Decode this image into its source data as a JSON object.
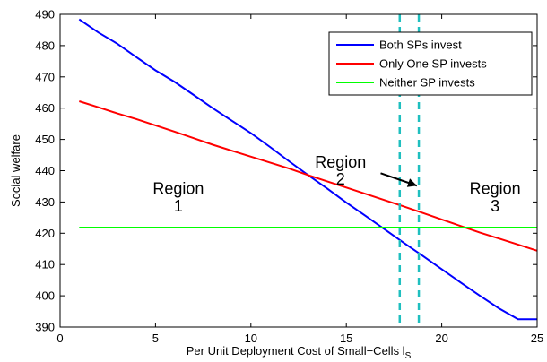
{
  "chart_data": {
    "type": "line",
    "xlabel": "Per Unit Deployment Cost of Small−Cells l",
    "xlabel_sub": "S",
    "ylabel": "Social welfare",
    "xlim": [
      0,
      25
    ],
    "ylim": [
      390,
      490
    ],
    "xticks": [
      0,
      5,
      10,
      15,
      20,
      25
    ],
    "yticks": [
      390,
      400,
      410,
      420,
      430,
      440,
      450,
      460,
      470,
      480,
      490
    ],
    "grid": false,
    "legend_position": "top-right",
    "series": [
      {
        "name": "Both SPs invest",
        "color": "#0000ff",
        "x": [
          1,
          2,
          3,
          4,
          5,
          6,
          7,
          8,
          9,
          10,
          11,
          12,
          13,
          14,
          15,
          16,
          17,
          18,
          19,
          20,
          21,
          22,
          23,
          24,
          25
        ],
        "y": [
          488.4,
          484.2,
          480.6,
          476.3,
          472.1,
          468.4,
          464.2,
          460.0,
          456.0,
          452.0,
          447.6,
          443.0,
          438.6,
          434.3,
          429.8,
          425.6,
          421.3,
          417.0,
          412.8,
          408.5,
          404.2,
          400.0,
          396.0,
          392.5,
          392.5
        ]
      },
      {
        "name": "Only One SP invests",
        "color": "#ff0000",
        "x": [
          1,
          2,
          3,
          4,
          5,
          6,
          7,
          8,
          9,
          10,
          11,
          12,
          13,
          14,
          15,
          16,
          17,
          18,
          19,
          20,
          21,
          22,
          23,
          24,
          25
        ],
        "y": [
          462.2,
          460.3,
          458.3,
          456.5,
          454.5,
          452.5,
          450.4,
          448.3,
          446.4,
          444.5,
          442.6,
          440.7,
          438.6,
          436.6,
          434.6,
          432.6,
          430.6,
          428.6,
          426.5,
          424.4,
          422.3,
          420.2,
          418.3,
          416.4,
          414.4
        ]
      },
      {
        "name": "Neither SP invests",
        "color": "#00ff00",
        "x": [
          1,
          25
        ],
        "y": [
          421.8,
          421.8
        ]
      }
    ],
    "vertical_lines": [
      {
        "x": 17.8,
        "color": "#1fbfbf"
      },
      {
        "x": 18.8,
        "color": "#1fbfbf"
      }
    ],
    "annotations": [
      {
        "text": "Region",
        "x": 6.2,
        "y": 432.5
      },
      {
        "text": "1",
        "x": 6.2,
        "y": 427.0
      },
      {
        "text": "Region",
        "x": 14.7,
        "y": 441.0
      },
      {
        "text": "2",
        "x": 14.7,
        "y": 435.5
      },
      {
        "text": "Region",
        "x": 22.8,
        "y": 432.5
      },
      {
        "text": "3",
        "x": 22.8,
        "y": 427.0
      }
    ],
    "arrow": {
      "from": [
        16.8,
        439.2
      ],
      "to": [
        18.7,
        435.2
      ],
      "color": "#000000"
    }
  }
}
